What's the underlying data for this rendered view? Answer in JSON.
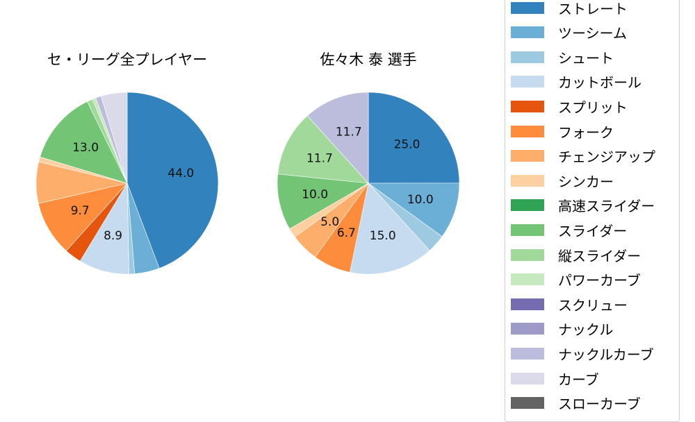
{
  "chart_data": [
    {
      "type": "pie",
      "title": "セ・リーグ全プレイヤー",
      "categories": [
        "ストレート",
        "ツーシーム",
        "シュート",
        "カットボール",
        "スプリット",
        "フォーク",
        "チェンジアップ",
        "シンカー",
        "スライダー",
        "縦スライダー",
        "パワーカーブ",
        "ナックルカーブ",
        "カーブ"
      ],
      "values": [
        44.0,
        4.4,
        1.0,
        8.9,
        3.0,
        9.7,
        7.3,
        0.9,
        13.0,
        1.0,
        0.6,
        1.0,
        4.6
      ],
      "labels_shown": [
        "44.0",
        "",
        "",
        "8.9",
        "",
        "9.7",
        "",
        "",
        "13.0",
        "",
        "",
        "",
        ""
      ],
      "start_angle": 90,
      "direction": "clockwise"
    },
    {
      "type": "pie",
      "title": "佐々木 泰  選手",
      "categories": [
        "ストレート",
        "ツーシーム",
        "シュート",
        "カットボール",
        "フォーク",
        "チェンジアップ",
        "シンカー",
        "スライダー",
        "縦スライダー",
        "ナックルカーブ"
      ],
      "values": [
        25.0,
        10.0,
        3.3,
        15.0,
        6.7,
        5.0,
        1.7,
        10.0,
        11.7,
        11.7
      ],
      "labels_shown": [
        "25.0",
        "10.0",
        "",
        "15.0",
        "6.7",
        "5.0",
        "",
        "10.0",
        "11.7",
        "11.7"
      ],
      "start_angle": 90,
      "direction": "clockwise"
    }
  ],
  "titles": {
    "left": "セ・リーグ全プレイヤー",
    "right": "佐々木 泰  選手"
  },
  "colors": {
    "ストレート": "#3182bd",
    "ツーシーム": "#6baed6",
    "シュート": "#9ecae1",
    "カットボール": "#c6dbef",
    "スプリット": "#e6550d",
    "フォーク": "#fd8d3c",
    "チェンジアップ": "#fdae6b",
    "シンカー": "#fdd0a2",
    "高速スライダー": "#31a354",
    "スライダー": "#74c476",
    "縦スライダー": "#a1d99b",
    "パワーカーブ": "#c7e9c0",
    "スクリュー": "#756bb1",
    "ナックル": "#9e9ac8",
    "ナックルカーブ": "#bcbddc",
    "カーブ": "#dadaeb",
    "スローカーブ": "#636363"
  },
  "legend": {
    "items": [
      {
        "label": "ストレート",
        "color": "#3182bd"
      },
      {
        "label": "ツーシーム",
        "color": "#6baed6"
      },
      {
        "label": "シュート",
        "color": "#9ecae1"
      },
      {
        "label": "カットボール",
        "color": "#c6dbef"
      },
      {
        "label": "スプリット",
        "color": "#e6550d"
      },
      {
        "label": "フォーク",
        "color": "#fd8d3c"
      },
      {
        "label": "チェンジアップ",
        "color": "#fdae6b"
      },
      {
        "label": "シンカー",
        "color": "#fdd0a2"
      },
      {
        "label": "高速スライダー",
        "color": "#31a354"
      },
      {
        "label": "スライダー",
        "color": "#74c476"
      },
      {
        "label": "縦スライダー",
        "color": "#a1d99b"
      },
      {
        "label": "パワーカーブ",
        "color": "#c7e9c0"
      },
      {
        "label": "スクリュー",
        "color": "#756bb1"
      },
      {
        "label": "ナックル",
        "color": "#9e9ac8"
      },
      {
        "label": "ナックルカーブ",
        "color": "#bcbddc"
      },
      {
        "label": "カーブ",
        "color": "#dadaeb"
      },
      {
        "label": "スローカーブ",
        "color": "#636363"
      }
    ]
  }
}
